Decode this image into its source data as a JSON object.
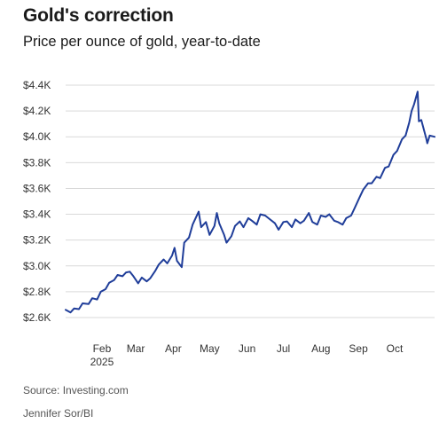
{
  "header": {
    "title": "Gold's correction",
    "subtitle": "Price per ounce of gold, year-to-date"
  },
  "footer": {
    "source": "Source: Investing.com",
    "credit": "Jennifer Sor/BI"
  },
  "colors": {
    "line": "#1f3d99",
    "grid": "#d9d9d9",
    "text": "#333333"
  },
  "chart_data": {
    "type": "line",
    "title": "Gold's correction",
    "subtitle": "Price per ounce of gold, year-to-date",
    "xlabel": "",
    "ylabel": "",
    "grid": true,
    "ylim": [
      2600,
      4400
    ],
    "xlim": [
      "2025-01-02",
      "2025-11-03"
    ],
    "y_ticks": [
      {
        "value": 4400,
        "label": "$4.4K"
      },
      {
        "value": 4200,
        "label": "$4.2K"
      },
      {
        "value": 4000,
        "label": "$4.0K"
      },
      {
        "value": 3800,
        "label": "$3.8K"
      },
      {
        "value": 3600,
        "label": "$3.6K"
      },
      {
        "value": 3400,
        "label": "$3.4K"
      },
      {
        "value": 3200,
        "label": "$3.2K"
      },
      {
        "value": 3000,
        "label": "$3.0K"
      },
      {
        "value": 2800,
        "label": "$2.8K"
      },
      {
        "value": 2600,
        "label": "$2.6K"
      }
    ],
    "x_ticks": [
      {
        "date": "2025-02-01",
        "label": "Feb",
        "sublabel": "2025"
      },
      {
        "date": "2025-03-01",
        "label": "Mar"
      },
      {
        "date": "2025-04-01",
        "label": "Apr"
      },
      {
        "date": "2025-05-01",
        "label": "May"
      },
      {
        "date": "2025-06-01",
        "label": "Jun"
      },
      {
        "date": "2025-07-01",
        "label": "Jul"
      },
      {
        "date": "2025-08-01",
        "label": "Aug"
      },
      {
        "date": "2025-09-01",
        "label": "Sep"
      },
      {
        "date": "2025-10-01",
        "label": "Oct"
      }
    ],
    "series": [
      {
        "points": [
          [
            "2025-01-02",
            2660
          ],
          [
            "2025-01-06",
            2640
          ],
          [
            "2025-01-09",
            2670
          ],
          [
            "2025-01-13",
            2665
          ],
          [
            "2025-01-16",
            2710
          ],
          [
            "2025-01-21",
            2705
          ],
          [
            "2025-01-24",
            2750
          ],
          [
            "2025-01-28",
            2740
          ],
          [
            "2025-01-31",
            2800
          ],
          [
            "2025-02-04",
            2820
          ],
          [
            "2025-02-07",
            2870
          ],
          [
            "2025-02-11",
            2890
          ],
          [
            "2025-02-14",
            2930
          ],
          [
            "2025-02-18",
            2920
          ],
          [
            "2025-02-21",
            2950
          ],
          [
            "2025-02-24",
            2955
          ],
          [
            "2025-02-27",
            2920
          ],
          [
            "2025-03-03",
            2865
          ],
          [
            "2025-03-06",
            2910
          ],
          [
            "2025-03-10",
            2880
          ],
          [
            "2025-03-13",
            2905
          ],
          [
            "2025-03-17",
            2960
          ],
          [
            "2025-03-20",
            3010
          ],
          [
            "2025-03-24",
            3050
          ],
          [
            "2025-03-27",
            3020
          ],
          [
            "2025-03-31",
            3080
          ],
          [
            "2025-04-02",
            3140
          ],
          [
            "2025-04-04",
            3040
          ],
          [
            "2025-04-08",
            2990
          ],
          [
            "2025-04-10",
            3180
          ],
          [
            "2025-04-14",
            3220
          ],
          [
            "2025-04-17",
            3320
          ],
          [
            "2025-04-22",
            3420
          ],
          [
            "2025-04-24",
            3300
          ],
          [
            "2025-04-28",
            3340
          ],
          [
            "2025-05-01",
            3240
          ],
          [
            "2025-05-05",
            3310
          ],
          [
            "2025-05-07",
            3410
          ],
          [
            "2025-05-09",
            3330
          ],
          [
            "2025-05-13",
            3240
          ],
          [
            "2025-05-15",
            3180
          ],
          [
            "2025-05-19",
            3230
          ],
          [
            "2025-05-22",
            3310
          ],
          [
            "2025-05-26",
            3345
          ],
          [
            "2025-05-29",
            3300
          ],
          [
            "2025-06-02",
            3370
          ],
          [
            "2025-06-05",
            3350
          ],
          [
            "2025-06-09",
            3320
          ],
          [
            "2025-06-12",
            3400
          ],
          [
            "2025-06-16",
            3390
          ],
          [
            "2025-06-20",
            3360
          ],
          [
            "2025-06-24",
            3330
          ],
          [
            "2025-06-27",
            3280
          ],
          [
            "2025-07-01",
            3340
          ],
          [
            "2025-07-04",
            3345
          ],
          [
            "2025-07-08",
            3300
          ],
          [
            "2025-07-11",
            3360
          ],
          [
            "2025-07-15",
            3330
          ],
          [
            "2025-07-18",
            3350
          ],
          [
            "2025-07-22",
            3410
          ],
          [
            "2025-07-25",
            3340
          ],
          [
            "2025-07-29",
            3320
          ],
          [
            "2025-08-01",
            3390
          ],
          [
            "2025-08-05",
            3380
          ],
          [
            "2025-08-08",
            3400
          ],
          [
            "2025-08-12",
            3350
          ],
          [
            "2025-08-15",
            3340
          ],
          [
            "2025-08-19",
            3320
          ],
          [
            "2025-08-22",
            3370
          ],
          [
            "2025-08-26",
            3390
          ],
          [
            "2025-08-29",
            3450
          ],
          [
            "2025-09-02",
            3530
          ],
          [
            "2025-09-05",
            3590
          ],
          [
            "2025-09-09",
            3640
          ],
          [
            "2025-09-12",
            3640
          ],
          [
            "2025-09-16",
            3690
          ],
          [
            "2025-09-19",
            3680
          ],
          [
            "2025-09-23",
            3760
          ],
          [
            "2025-09-26",
            3770
          ],
          [
            "2025-09-30",
            3860
          ],
          [
            "2025-10-03",
            3890
          ],
          [
            "2025-10-07",
            3980
          ],
          [
            "2025-10-10",
            4010
          ],
          [
            "2025-10-13",
            4110
          ],
          [
            "2025-10-15",
            4200
          ],
          [
            "2025-10-17",
            4250
          ],
          [
            "2025-10-20",
            4350
          ],
          [
            "2025-10-21",
            4120
          ],
          [
            "2025-10-23",
            4130
          ],
          [
            "2025-10-27",
            3990
          ],
          [
            "2025-10-28",
            3950
          ],
          [
            "2025-10-30",
            4010
          ],
          [
            "2025-11-03",
            4000
          ]
        ]
      }
    ]
  }
}
